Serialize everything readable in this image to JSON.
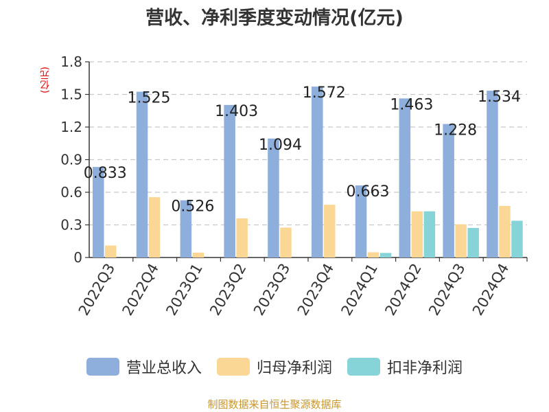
{
  "chart_data": {
    "type": "bar",
    "title": "营收、净利季度变动情况(亿元)",
    "unit_label": "(亿元)",
    "categories": [
      "2022Q3",
      "2022Q4",
      "2023Q1",
      "2023Q2",
      "2023Q3",
      "2023Q4",
      "2024Q1",
      "2024Q2",
      "2024Q3",
      "2024Q4"
    ],
    "series": [
      {
        "name": "营业总收入",
        "color": "#8eafdb",
        "values": [
          0.833,
          1.525,
          0.526,
          1.403,
          1.094,
          1.572,
          0.663,
          1.463,
          1.228,
          1.534
        ]
      },
      {
        "name": "归母净利润",
        "color": "#fbd796",
        "values": [
          0.11,
          0.555,
          0.045,
          0.36,
          0.275,
          0.485,
          0.048,
          0.425,
          0.305,
          0.475
        ]
      },
      {
        "name": "扣非净利润",
        "color": "#86d4d8",
        "values": [
          null,
          null,
          null,
          null,
          null,
          null,
          0.042,
          0.425,
          0.272,
          0.338
        ]
      }
    ],
    "data_labels": [
      "0.833",
      "1.525",
      "0.526",
      "1.403",
      "1.094",
      "1.572",
      "0.663",
      "1.463",
      "1.228",
      "1.534"
    ],
    "yticks": [
      "0",
      "0.3",
      "0.6",
      "0.9",
      "1.2",
      "1.5",
      "1.8"
    ],
    "ylim": [
      0,
      1.8
    ],
    "grid": true,
    "legend_position": "bottom"
  },
  "footer": {
    "source": "制图数据来自恒生聚源数据库"
  }
}
